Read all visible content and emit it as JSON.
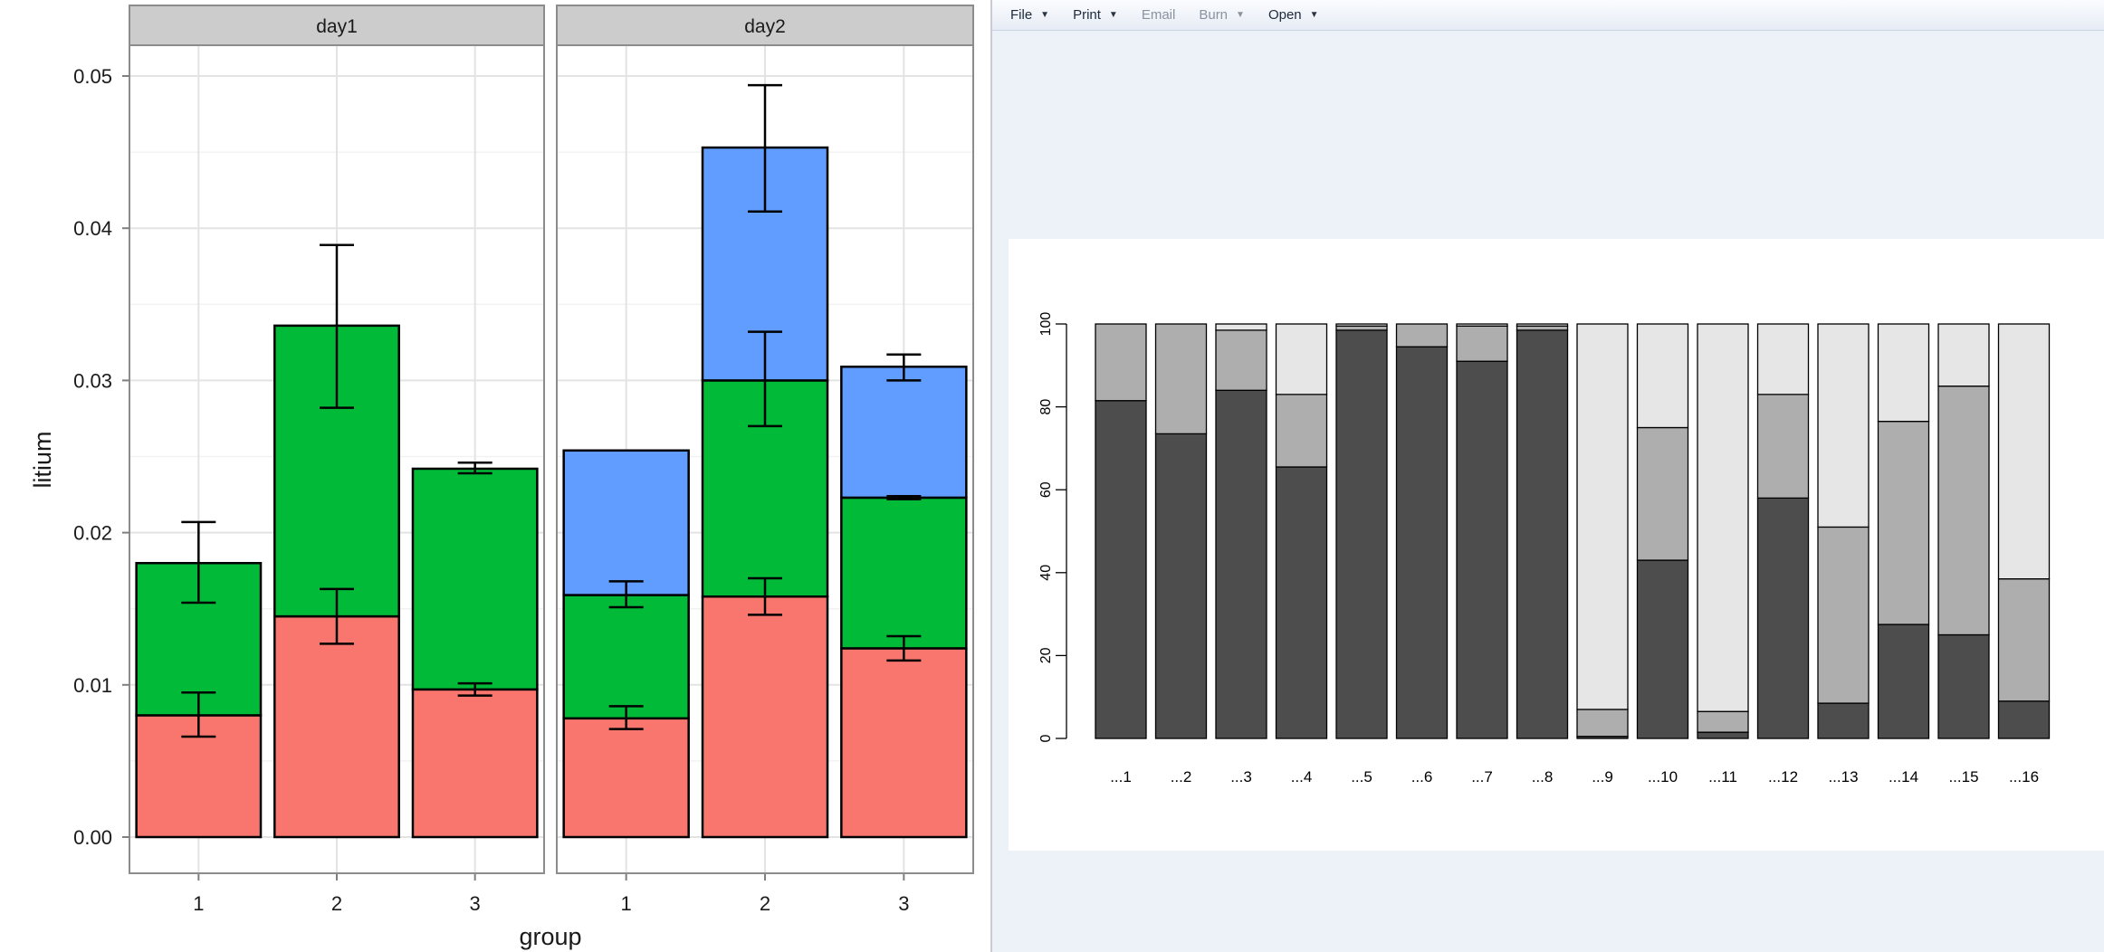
{
  "viewer": {
    "toolbar": [
      {
        "label": "File",
        "enabled": true
      },
      {
        "label": "Print",
        "enabled": true
      },
      {
        "label": "Email",
        "enabled": false
      },
      {
        "label": "Burn",
        "enabled": false
      },
      {
        "label": "Open",
        "enabled": true
      }
    ]
  },
  "chart_data": [
    {
      "type": "bar",
      "stacked": true,
      "facets": [
        "day1",
        "day2"
      ],
      "categories": [
        "1",
        "2",
        "3"
      ],
      "xlabel": "group",
      "ylabel": "litium",
      "ylim": [
        0,
        0.052
      ],
      "yticks": [
        "0.00",
        "0.01",
        "0.02",
        "0.03",
        "0.04",
        "0.05"
      ],
      "grid": true,
      "colors": [
        "#f8766d",
        "#00ba38",
        "#619cff"
      ],
      "panels": [
        {
          "facet": "day1",
          "stacks": [
            {
              "category": "1",
              "tops": [
                0.008,
                0.018
              ],
              "errors": [
                [
                  0.0066,
                  0.0095
                ],
                [
                  0.0154,
                  0.0207
                ]
              ]
            },
            {
              "category": "2",
              "tops": [
                0.0145,
                0.0336
              ],
              "errors": [
                [
                  0.0127,
                  0.0163
                ],
                [
                  0.0282,
                  0.0389
                ]
              ]
            },
            {
              "category": "3",
              "tops": [
                0.0097,
                0.0242
              ],
              "errors": [
                [
                  0.0093,
                  0.0101
                ],
                [
                  0.0239,
                  0.0246
                ]
              ]
            }
          ]
        },
        {
          "facet": "day2",
          "stacks": [
            {
              "category": "1",
              "tops": [
                0.0078,
                0.0159,
                0.0254
              ],
              "errors": [
                [
                  0.0071,
                  0.0086
                ],
                [
                  0.0151,
                  0.0168
                ],
                null
              ]
            },
            {
              "category": "2",
              "tops": [
                0.0158,
                0.03,
                0.0453
              ],
              "errors": [
                [
                  0.0146,
                  0.017
                ],
                [
                  0.027,
                  0.0332
                ],
                [
                  0.0411,
                  0.0494
                ]
              ]
            },
            {
              "category": "3",
              "tops": [
                0.0124,
                0.0223,
                0.0309
              ],
              "errors": [
                [
                  0.0116,
                  0.0132
                ],
                [
                  0.0222,
                  0.0224
                ],
                [
                  0.03,
                  0.0317
                ]
              ]
            }
          ]
        }
      ]
    },
    {
      "type": "bar",
      "stacked": true,
      "categories": [
        "...1",
        "...2",
        "...3",
        "...4",
        "...5",
        "...6",
        "...7",
        "...8",
        "...9",
        "...10",
        "...11",
        "...12",
        "...13",
        "...14",
        "...15",
        "...16"
      ],
      "ylim": [
        0,
        100
      ],
      "yticks": [
        "0",
        "20",
        "40",
        "60",
        "80",
        "100"
      ],
      "series_colors": [
        "#4d4d4d",
        "#aeaeae",
        "#e6e6e6"
      ],
      "series": [
        {
          "values": [
            81.5,
            73.5,
            84,
            65.5,
            98.5,
            94.5,
            91,
            98.5,
            0.5,
            43,
            1.5,
            58,
            8.5,
            27.5,
            25,
            9
          ]
        },
        {
          "values": [
            18.5,
            26.5,
            14.5,
            17.5,
            1,
            5.5,
            8.5,
            1,
            6.5,
            32,
            5,
            25,
            42.5,
            49,
            60,
            29.5
          ]
        },
        {
          "values": [
            0,
            0,
            1.5,
            17,
            0.5,
            0,
            0.5,
            0.5,
            93,
            25,
            93.5,
            17,
            49,
            23.5,
            15,
            61.5
          ]
        }
      ]
    }
  ]
}
